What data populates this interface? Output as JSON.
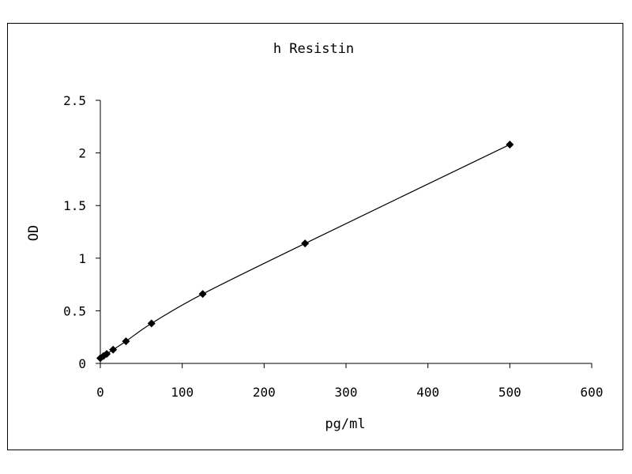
{
  "chart_data": {
    "type": "scatter",
    "title": "h Resistin",
    "xlabel": "pg/ml",
    "ylabel": "OD",
    "xlim": [
      0,
      600
    ],
    "ylim": [
      0,
      2.5
    ],
    "xticks": [
      0,
      100,
      200,
      300,
      400,
      500,
      600
    ],
    "yticks": [
      0,
      0.5,
      1,
      1.5,
      2,
      2.5
    ],
    "xtick_labels": [
      "0",
      "100",
      "200",
      "300",
      "400",
      "500",
      "600"
    ],
    "ytick_labels": [
      "0",
      "0.5",
      "1",
      "1.5",
      "2",
      "2.5"
    ],
    "grid": false,
    "legend": "none",
    "marker": "diamond",
    "line": "smooth",
    "colors": {
      "series": "#000000",
      "frame": "#000000"
    },
    "series": [
      {
        "x": [
          0,
          3.9,
          7.8,
          15.6,
          31.3,
          62.5,
          125,
          250,
          500
        ],
        "values": [
          0.05,
          0.07,
          0.09,
          0.13,
          0.21,
          0.38,
          0.66,
          1.14,
          2.08
        ]
      }
    ]
  }
}
